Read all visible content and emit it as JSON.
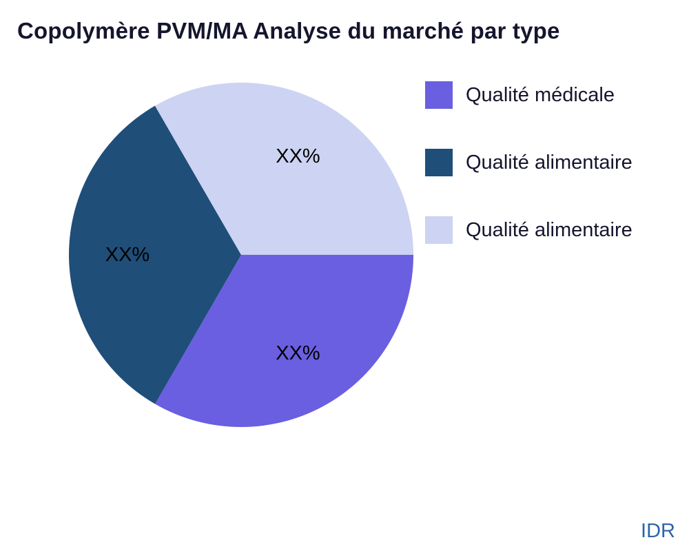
{
  "watermark": "IDR",
  "chart_data": {
    "type": "pie",
    "title": "Copolymère PVM/MA Analyse du marché par type",
    "slices": [
      {
        "label": "Qualité médicale",
        "display_value": "XX%",
        "value": 33.33,
        "color": "#6a5fe0"
      },
      {
        "label": "Qualité alimentaire",
        "display_value": "XX%",
        "value": 33.33,
        "color": "#1f4e79"
      },
      {
        "label": "Qualité alimentaire",
        "display_value": "XX%",
        "value": 33.34,
        "color": "#cdd3f2"
      }
    ],
    "start_angle_deg": 0,
    "sweep": "clockwise",
    "legend_position": "right",
    "label_color": "#000000",
    "background": "#ffffff"
  }
}
